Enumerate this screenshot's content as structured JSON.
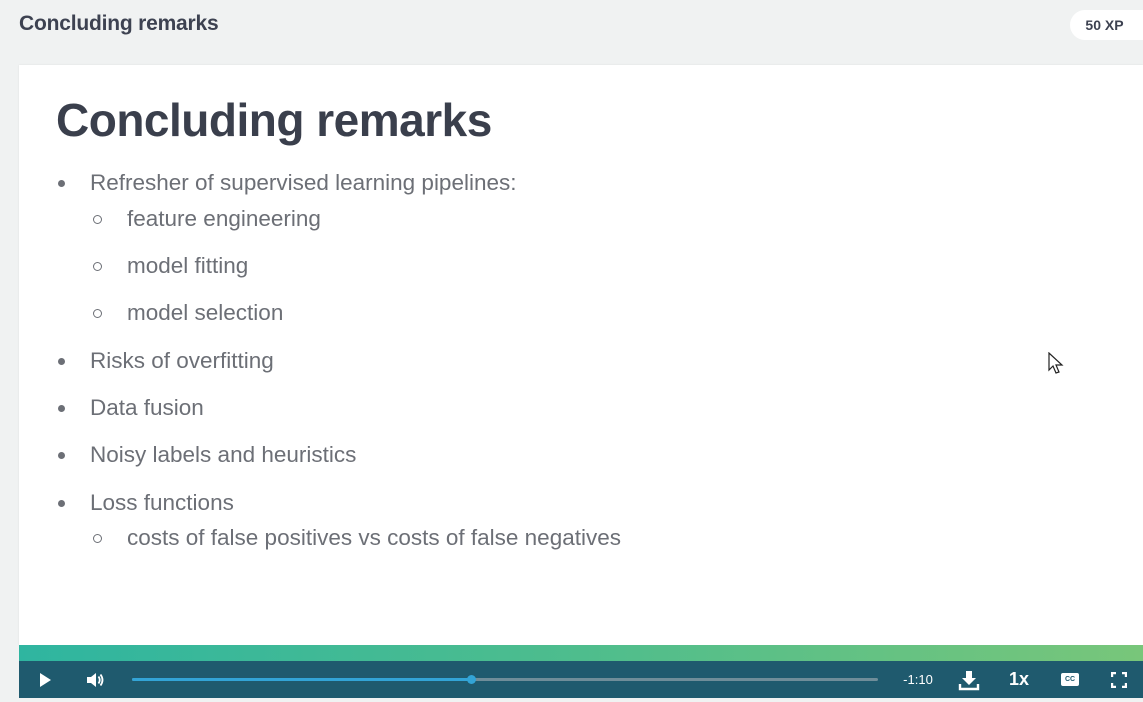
{
  "header": {
    "title": "Concluding remarks",
    "xp_badge": "50 XP"
  },
  "slide": {
    "title": "Concluding remarks",
    "bullets": [
      {
        "text": "Refresher of supervised learning pipelines:",
        "sub": [
          "feature engineering",
          "model fitting",
          "model selection"
        ]
      },
      {
        "text": "Risks of overfitting",
        "sub": []
      },
      {
        "text": "Data fusion",
        "sub": []
      },
      {
        "text": "Noisy labels and heuristics",
        "sub": []
      },
      {
        "text": "Loss functions",
        "sub": [
          "costs of false positives vs costs of false negatives"
        ]
      }
    ]
  },
  "player": {
    "time_remaining": "-1:10",
    "speed": "1x",
    "cc_label": "CC",
    "progress_fraction": 0.454,
    "icons": {
      "play": "play-icon",
      "volume": "volume-icon",
      "download": "download-icon",
      "captions": "captions-icon",
      "fullscreen": "fullscreen-icon"
    },
    "colors": {
      "bar": "#1f5a6e",
      "progress": "#33a4d6",
      "strip_start": "#2fb5a0",
      "strip_end": "#78c67a"
    }
  }
}
